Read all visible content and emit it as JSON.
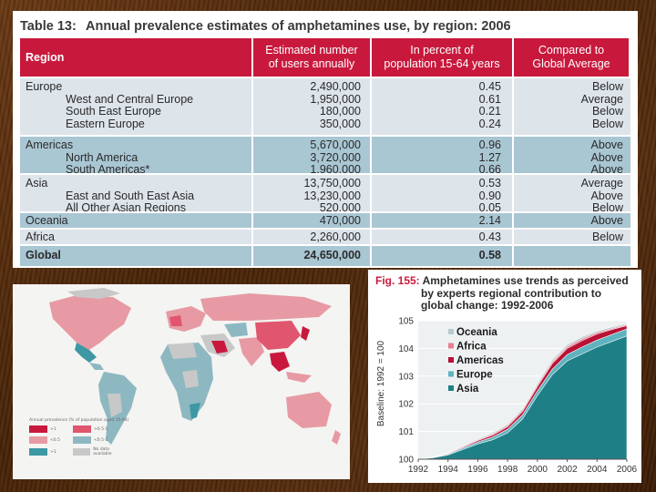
{
  "table": {
    "number": "Table 13:",
    "title": "Annual prevalence estimates of amphetamines use, by region: 2006",
    "headers": {
      "region": "Region",
      "users": [
        "Estimated  number",
        "of users annually"
      ],
      "percent": [
        "In percent of",
        "population 15-64 years"
      ],
      "compared": [
        "Compared to",
        "Global Average"
      ]
    },
    "groups": [
      {
        "key": "europe",
        "rows": [
          {
            "name": "Europe",
            "sub": false,
            "users": "2,490,000",
            "pct": "0.45",
            "cmp": "Below"
          },
          {
            "name": "West and Central Europe",
            "sub": true,
            "users": "1,950,000",
            "pct": "0.61",
            "cmp": "Average"
          },
          {
            "name": "South East Europe",
            "sub": true,
            "users": "180,000",
            "pct": "0.21",
            "cmp": "Below"
          },
          {
            "name": "Eastern Europe",
            "sub": true,
            "users": "350,000",
            "pct": "0.24",
            "cmp": "Below"
          }
        ]
      },
      {
        "key": "americas",
        "rows": [
          {
            "name": "Americas",
            "sub": false,
            "users": "5,670,000",
            "pct": "0.96",
            "cmp": "Above"
          },
          {
            "name": "North America",
            "sub": true,
            "users": "3,720,000",
            "pct": "1.27",
            "cmp": "Above"
          },
          {
            "name": "South Americas*",
            "sub": true,
            "users": "1,960,000",
            "pct": "0.66",
            "cmp": "Above"
          }
        ]
      },
      {
        "key": "asia",
        "rows": [
          {
            "name": "Asia",
            "sub": false,
            "users": "13,750,000",
            "pct": "0.53",
            "cmp": "Average"
          },
          {
            "name": "East and South East Asia",
            "sub": true,
            "users": "13,230,000",
            "pct": "0.90",
            "cmp": "Above"
          },
          {
            "name": "All Other Asian Regions",
            "sub": true,
            "users": "520,000",
            "pct": "0.05",
            "cmp": "Below"
          }
        ]
      },
      {
        "key": "oceania",
        "rows": [
          {
            "name": "Oceania",
            "sub": false,
            "users": "470,000",
            "pct": "2.14",
            "cmp": "Above"
          }
        ]
      },
      {
        "key": "africa",
        "rows": [
          {
            "name": "Africa",
            "sub": false,
            "users": "2,260,000",
            "pct": "0.43",
            "cmp": "Below"
          }
        ]
      }
    ],
    "global": {
      "name": "Global",
      "users": "24,650,000",
      "pct": "0.58",
      "cmp": ""
    }
  },
  "map": {
    "legend_title": "Annual prevalence (% of population aged 15-64)",
    "legend_items": [
      {
        "label": ">1",
        "color": "#c8193d"
      },
      {
        "label": ">0.5-1",
        "color": "#e0566e"
      },
      {
        "label": "<0.5",
        "color": "#e79aa3"
      },
      {
        "label": "<0.5-1",
        "color": "#8db8c2"
      },
      {
        "label": ">1",
        "color": "#3d98a3"
      },
      {
        "label": "No data available",
        "color": "#c8c8c8"
      }
    ]
  },
  "figure": {
    "number": "Fig. 155:",
    "title_line1": "Amphetamines use trends as perceived",
    "title_line2": "by experts regional contribution to",
    "title_line3": "global change: 1992-2006"
  },
  "chart_data": {
    "type": "area",
    "title": "Amphetamines use trends as perceived by experts regional contribution to global change: 1992-2006",
    "ylabel": "Baseline: 1992 = 100",
    "xlabel": "",
    "ylim": [
      100,
      105
    ],
    "yticks": [
      "100",
      "101",
      "102",
      "103",
      "104",
      "105"
    ],
    "xticks": [
      "1992",
      "1994",
      "1996",
      "1998",
      "2000",
      "2002",
      "2004",
      "2006"
    ],
    "x": [
      1992,
      1993,
      1994,
      1995,
      1996,
      1997,
      1998,
      1999,
      2000,
      2001,
      2002,
      2003,
      2004,
      2005,
      2006
    ],
    "series": [
      {
        "name": "Asia",
        "color": "#1f7f86",
        "values": [
          100.0,
          100.05,
          100.15,
          100.35,
          100.55,
          100.7,
          100.95,
          101.45,
          102.3,
          103.05,
          103.55,
          103.8,
          104.05,
          104.25,
          104.45
        ]
      },
      {
        "name": "Europe",
        "color": "#5fb3bf",
        "values": [
          100.0,
          100.06,
          100.18,
          100.4,
          100.62,
          100.8,
          101.08,
          101.6,
          102.47,
          103.25,
          103.78,
          104.05,
          104.3,
          104.5,
          104.7
        ]
      },
      {
        "name": "Americas",
        "color": "#b81235",
        "values": [
          100.0,
          100.07,
          100.2,
          100.43,
          100.67,
          100.87,
          101.17,
          101.72,
          102.62,
          103.45,
          104.0,
          104.28,
          104.52,
          104.68,
          104.82
        ]
      },
      {
        "name": "Africa",
        "color": "#e7808f",
        "values": [
          100.0,
          100.08,
          100.22,
          100.46,
          100.7,
          100.91,
          101.22,
          101.78,
          102.69,
          103.52,
          104.07,
          104.35,
          104.58,
          104.72,
          104.86
        ]
      },
      {
        "name": "Oceania",
        "color": "#b9c9d1",
        "values": [
          100.0,
          100.09,
          100.24,
          100.49,
          100.74,
          100.96,
          101.27,
          101.84,
          102.76,
          103.6,
          104.14,
          104.42,
          104.63,
          104.77,
          104.9
        ]
      }
    ],
    "legend_order": [
      "Oceania",
      "Africa",
      "Americas",
      "Europe",
      "Asia"
    ],
    "legend_position": "top-left",
    "grid": true
  }
}
